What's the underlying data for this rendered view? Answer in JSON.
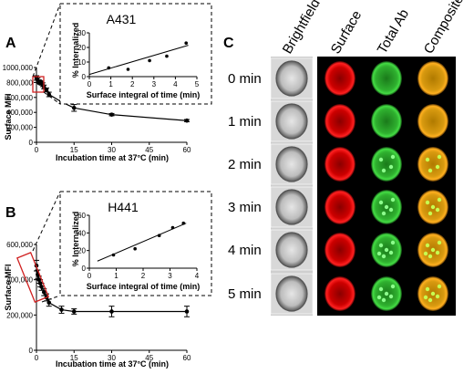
{
  "panels": {
    "A": {
      "letter": "A",
      "inset_title": "A431",
      "ylabel": "Surface MFI",
      "xlabel": "Incubation time at 37°C (min)",
      "inset_ylabel": "% Internalized",
      "inset_xlabel": "Surface integral of time (min)"
    },
    "B": {
      "letter": "B",
      "inset_title": "H441",
      "ylabel": "Surface MFI",
      "xlabel": "Incubation time at 37°C (min)",
      "inset_ylabel": "% Internalized",
      "inset_xlabel": "Surface integral of time (min)"
    },
    "C": {
      "letter": "C",
      "columns": [
        "Brightfield",
        "Surface",
        "Total Ab",
        "Composite"
      ],
      "rows": [
        "0 min",
        "1 min",
        "2 min",
        "3 min",
        "4 min",
        "5 min"
      ]
    }
  },
  "chart_data": [
    {
      "id": "A-main",
      "type": "line",
      "xlabel": "Incubation time at 37°C (min)",
      "ylabel": "Surface MFI",
      "xlim": [
        0,
        60
      ],
      "ylim": [
        0,
        1000000
      ],
      "xticks": [
        0,
        15,
        30,
        45,
        60
      ],
      "yticks": [
        0,
        200000,
        400000,
        600000,
        800000,
        1000000
      ],
      "ytick_labels": [
        "0",
        "200,000",
        "400,000",
        "600,000",
        "800,000",
        "1000,000"
      ],
      "x": [
        0,
        0.5,
        1,
        1.5,
        2,
        2.5,
        3,
        4,
        5,
        10,
        15,
        30,
        60
      ],
      "y": [
        860000,
        830000,
        810000,
        800000,
        790000,
        770000,
        740000,
        700000,
        640000,
        540000,
        460000,
        370000,
        290000
      ],
      "err": [
        30000,
        30000,
        25000,
        25000,
        25000,
        25000,
        25000,
        25000,
        30000,
        20000,
        45000,
        15000,
        15000
      ]
    },
    {
      "id": "A-inset",
      "type": "scatter",
      "title": "A431",
      "xlabel": "Surface integral of time (min)",
      "ylabel": "% Internalized",
      "xlim": [
        0,
        5
      ],
      "ylim": [
        0,
        30
      ],
      "xticks": [
        0,
        1,
        2,
        3,
        4,
        5
      ],
      "xtick_labels": [
        "0",
        "1",
        "2",
        "3",
        "4",
        "5"
      ],
      "yticks": [
        0,
        10,
        20,
        30
      ],
      "x": [
        0.9,
        1.8,
        2.8,
        3.6,
        4.5
      ],
      "y": [
        6,
        5,
        11,
        14,
        23
      ],
      "fit": [
        [
          0,
          1.5
        ],
        [
          4.6,
          21.5
        ]
      ]
    },
    {
      "id": "B-main",
      "type": "line",
      "xlabel": "Incubation time at 37°C (min)",
      "ylabel": "Surface MFI",
      "xlim": [
        0,
        60
      ],
      "ylim": [
        0,
        600000
      ],
      "xticks": [
        0,
        15,
        30,
        45,
        60
      ],
      "yticks": [
        0,
        200000,
        400000,
        600000
      ],
      "ytick_labels": [
        "0",
        "200,000",
        "400,000",
        "600,000"
      ],
      "x": [
        0,
        0.5,
        1,
        1.5,
        2,
        3,
        4,
        5,
        10,
        15,
        30,
        60
      ],
      "y": [
        480000,
        430000,
        400000,
        380000,
        360000,
        330000,
        300000,
        270000,
        230000,
        220000,
        220000,
        220000
      ],
      "err": [
        30000,
        25000,
        20000,
        20000,
        20000,
        20000,
        20000,
        20000,
        20000,
        15000,
        30000,
        30000
      ]
    },
    {
      "id": "B-inset",
      "type": "scatter",
      "title": "H441",
      "xlabel": "Surface integral of time (min)",
      "ylabel": "% Internalized",
      "xlim": [
        0,
        4
      ],
      "ylim": [
        0,
        60
      ],
      "xticks": [
        0,
        1,
        2,
        3,
        4
      ],
      "xtick_labels": [
        "0",
        "1",
        "2",
        "3",
        "4"
      ],
      "yticks": [
        0,
        20,
        40,
        60
      ],
      "x": [
        0.9,
        1.7,
        2.6,
        3.1,
        3.5
      ],
      "y": [
        15,
        22,
        37,
        46,
        51
      ],
      "fit": [
        [
          0.3,
          8
        ],
        [
          3.6,
          51
        ]
      ]
    }
  ]
}
